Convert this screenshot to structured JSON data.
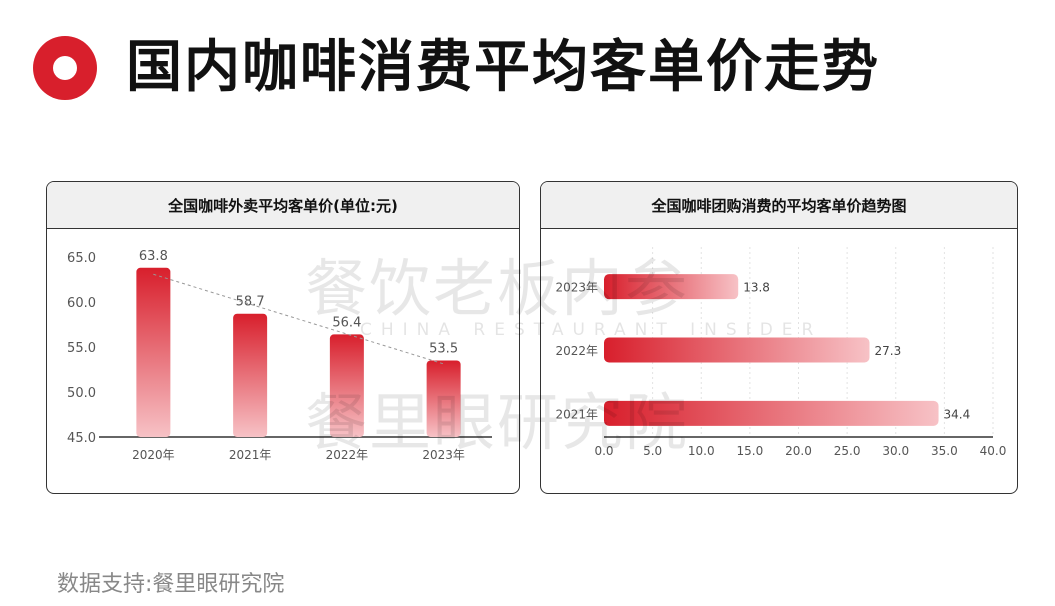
{
  "page": {
    "title": "国内咖啡消费平均客单价走势",
    "footer": "数据支持:餐里眼研究院"
  },
  "watermark": {
    "line1": "餐饮老板内参",
    "line2": "CHINA RESTAURANT INSIDER",
    "line3": "餐里眼研究院"
  },
  "colors": {
    "accent": "#d81f2c",
    "bar_top": "#d81f2c",
    "bar_bottom": "#f7c2c6"
  },
  "chart_data": [
    {
      "type": "bar",
      "title": "全国咖啡外卖平均客单价(单位:元)",
      "categories": [
        "2020年",
        "2021年",
        "2022年",
        "2023年"
      ],
      "values": [
        63.8,
        58.7,
        56.4,
        53.5
      ],
      "data_labels": [
        "63.8",
        "58.7",
        "56.4",
        "53.5"
      ],
      "ylim": [
        45.0,
        65.0
      ],
      "y_ticks": [
        "45.0",
        "50.0",
        "55.0",
        "60.0",
        "65.0"
      ],
      "trendline": true,
      "grid": false
    },
    {
      "type": "bar",
      "orientation": "horizontal",
      "title": "全国咖啡团购消费的平均客单价趋势图",
      "categories": [
        "2023年",
        "2022年",
        "2021年"
      ],
      "values": [
        13.8,
        27.3,
        34.4
      ],
      "data_labels": [
        "13.8",
        "27.3",
        "34.4"
      ],
      "xlim": [
        0.0,
        40.0
      ],
      "x_ticks": [
        "0.0",
        "5.0",
        "10.0",
        "15.0",
        "20.0",
        "25.0",
        "30.0",
        "35.0",
        "40.0"
      ],
      "grid": true
    }
  ]
}
